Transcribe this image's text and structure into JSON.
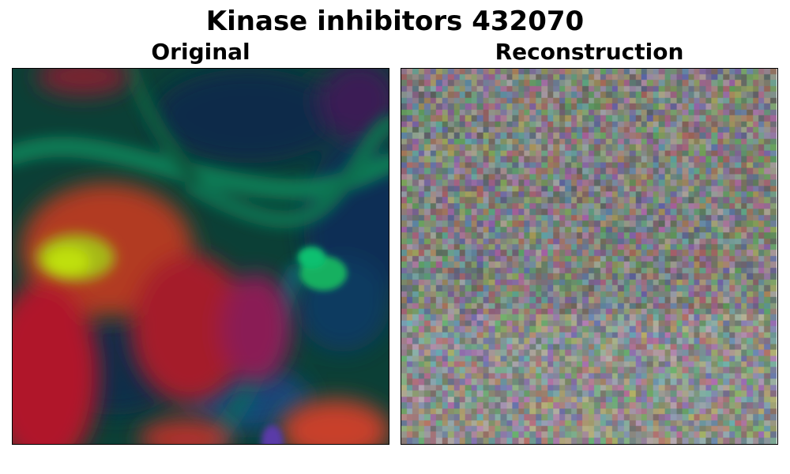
{
  "figure": {
    "title": "Kinase inhibitors 432070"
  },
  "panels": [
    {
      "title": "Original"
    },
    {
      "title": "Reconstruction"
    }
  ],
  "colors": {
    "original_background": "#0e4a3a",
    "reconstruction_base": "#8a8a86"
  }
}
